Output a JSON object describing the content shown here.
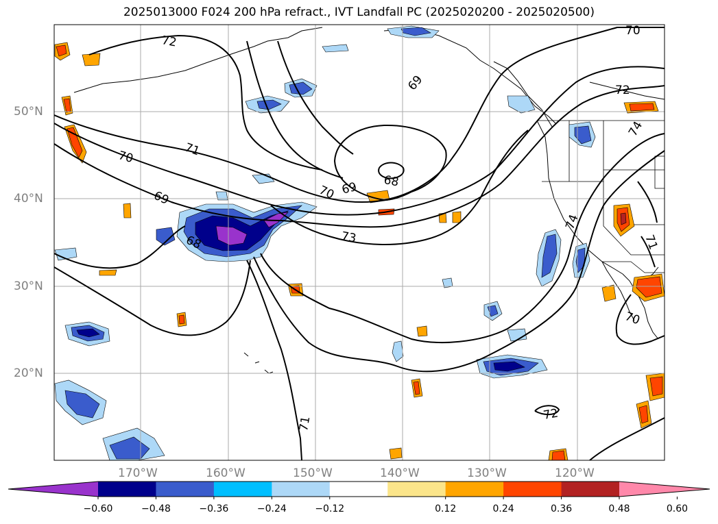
{
  "title": "2025013000 F024 200 hPa refract., IVT Landfall PC (2025020200 - 2025020500)",
  "map": {
    "lat_labels": [
      "50°N",
      "40°N",
      "30°N",
      "20°N"
    ],
    "lon_labels": [
      "170°W",
      "160°W",
      "150°W",
      "140°W",
      "130°W",
      "120°W"
    ],
    "contour_labels": [
      "72",
      "70",
      "70",
      "71",
      "69",
      "69",
      "68",
      "70",
      "69",
      "68",
      "73",
      "74",
      "72",
      "74",
      "71",
      "70",
      "71",
      "72"
    ],
    "grid": true
  },
  "colorbar": {
    "ticks": [
      "−0.60",
      "−0.48",
      "−0.36",
      "−0.24",
      "−0.12",
      "0.12",
      "0.24",
      "0.36",
      "0.48",
      "0.60"
    ],
    "colors": [
      "#9933cc",
      "#00008b",
      "#3a5ccc",
      "#00bfff",
      "#add8f7",
      "#ffffff",
      "#fbe58a",
      "#ffa500",
      "#ff4500",
      "#b22222",
      "#ff88aa"
    ],
    "extend": "both"
  }
}
